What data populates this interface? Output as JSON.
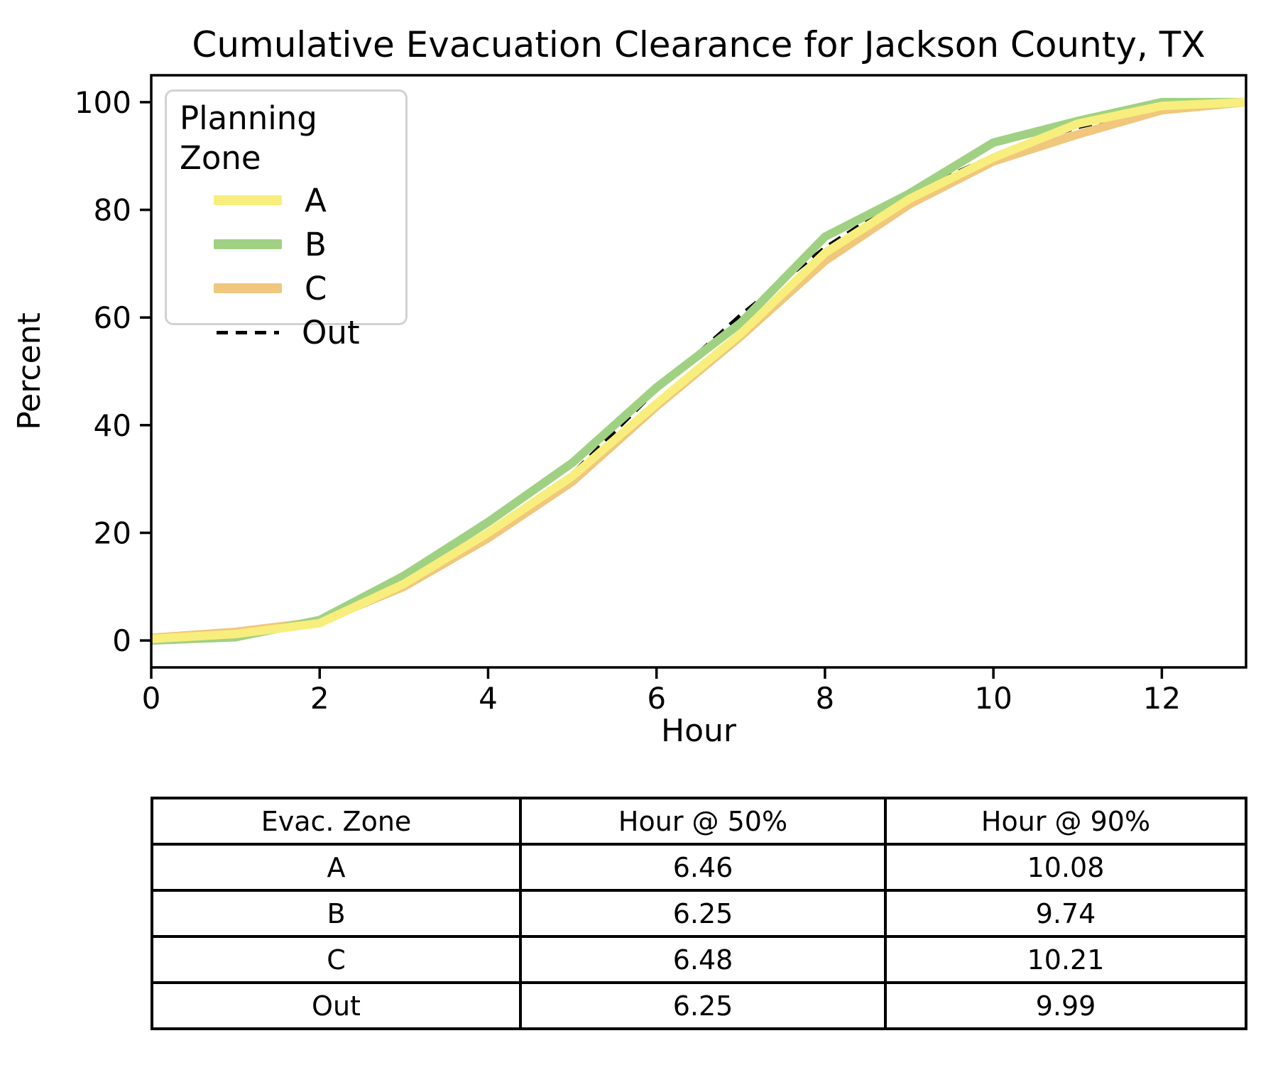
{
  "figure": {
    "title": "Cumulative Evacuation Clearance for Jackson County, TX"
  },
  "chart_data": {
    "type": "line",
    "title": "Cumulative Evacuation Clearance for Jackson County, TX",
    "xlabel": "Hour",
    "ylabel": "Percent",
    "xlim": [
      0,
      13
    ],
    "ylim": [
      -5,
      105
    ],
    "xticks": [
      0,
      2,
      4,
      6,
      8,
      10,
      12
    ],
    "yticks": [
      0,
      20,
      40,
      60,
      80,
      100
    ],
    "grid": false,
    "legend": {
      "title": "Planning Zone",
      "position": "upper left"
    },
    "x": [
      0,
      1,
      2,
      3,
      4,
      5,
      6,
      7,
      8,
      9,
      10,
      11,
      12,
      13
    ],
    "series": [
      {
        "name": "A",
        "color": "#F8EE7D",
        "style": "solid",
        "values": [
          0.3,
          1.2,
          3.2,
          10.5,
          20,
          30.5,
          44,
          57,
          72,
          82,
          89.7,
          96,
          99.3,
          100
        ]
      },
      {
        "name": "B",
        "color": "#A0D183",
        "style": "solid",
        "values": [
          0,
          0.6,
          3.8,
          12,
          22,
          33,
          47,
          59,
          75,
          83,
          92.5,
          96.5,
          100,
          100
        ]
      },
      {
        "name": "C",
        "color": "#F0C77D",
        "style": "solid",
        "values": [
          0.5,
          1.6,
          3.5,
          10,
          19,
          29.5,
          43.5,
          56.5,
          70.5,
          81,
          89,
          94,
          98.5,
          100
        ]
      },
      {
        "name": "Out",
        "color": "#000000",
        "style": "dashed",
        "values": [
          0,
          1.0,
          2.8,
          10,
          20.5,
          31,
          46.5,
          60.5,
          73,
          83,
          90.1,
          95.3,
          99,
          100
        ]
      }
    ]
  },
  "table": {
    "headers": [
      "Evac. Zone",
      "Hour @ 50%",
      "Hour @ 90%"
    ],
    "rows": [
      {
        "zone": "A",
        "h50": "6.46",
        "h90": "10.08"
      },
      {
        "zone": "B",
        "h50": "6.25",
        "h90": "9.74"
      },
      {
        "zone": "C",
        "h50": "6.48",
        "h90": "10.21"
      },
      {
        "zone": "Out",
        "h50": "6.25",
        "h90": "9.99"
      }
    ]
  }
}
